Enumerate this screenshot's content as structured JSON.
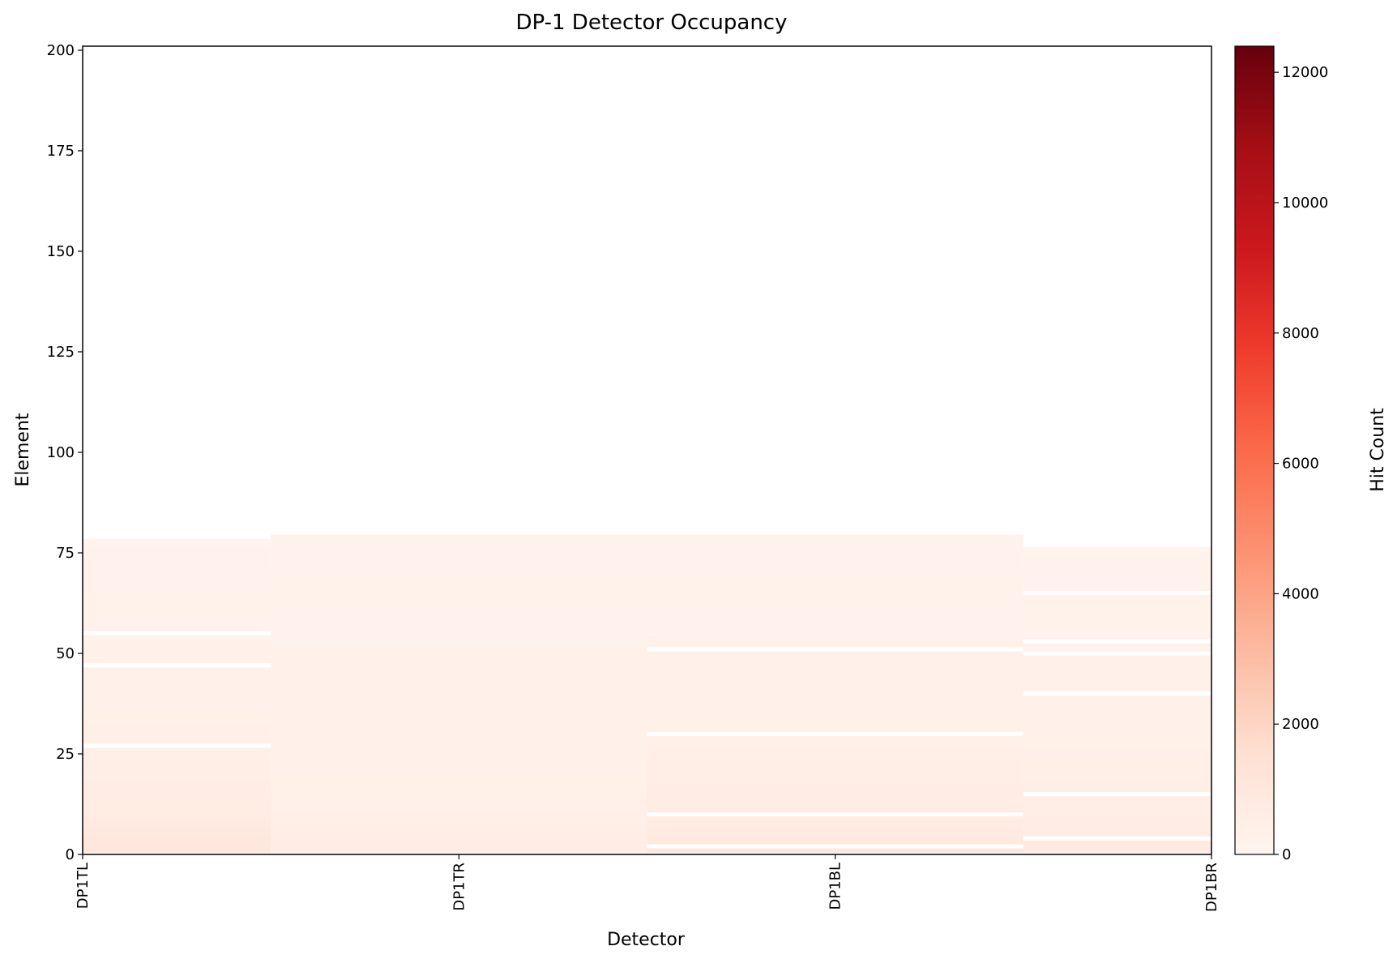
{
  "chart_data": {
    "type": "heatmap",
    "title": "DP-1 Detector Occupancy",
    "xlabel": "Detector",
    "ylabel": "Element",
    "colorbar_label": "Hit Count",
    "categories": [
      "DP1TL",
      "DP1TR",
      "DP1BL",
      "DP1BR"
    ],
    "ylim": [
      0,
      201
    ],
    "yticks": [
      0,
      25,
      50,
      75,
      100,
      125,
      150,
      175,
      200
    ],
    "zlim": [
      0,
      12400
    ],
    "colorbar_ticks": [
      0,
      2000,
      4000,
      6000,
      8000,
      10000,
      12000
    ],
    "colormap": "Reds",
    "grid": false,
    "columns": [
      {
        "detector": "DP1TL",
        "max_element": 78,
        "empty_elements": [
          27,
          47,
          55
        ],
        "profile": [
          [
            1,
            1100
          ],
          [
            10,
            700
          ],
          [
            25,
            450
          ],
          [
            50,
            300
          ],
          [
            78,
            180
          ]
        ]
      },
      {
        "detector": "DP1TR",
        "max_element": 79,
        "empty_elements": [],
        "profile": [
          [
            1,
            600
          ],
          [
            10,
            420
          ],
          [
            35,
            330
          ],
          [
            60,
            260
          ],
          [
            79,
            200
          ]
        ]
      },
      {
        "detector": "DP1BL",
        "max_element": 79,
        "empty_elements": [
          2,
          10,
          30,
          51
        ],
        "profile": [
          [
            1,
            1000
          ],
          [
            10,
            650
          ],
          [
            30,
            400
          ],
          [
            50,
            300
          ],
          [
            79,
            200
          ]
        ]
      },
      {
        "detector": "DP1BR",
        "max_element": 76,
        "empty_elements": [
          4,
          15,
          40,
          50,
          53,
          65
        ],
        "profile": [
          [
            1,
            850
          ],
          [
            10,
            550
          ],
          [
            30,
            380
          ],
          [
            50,
            280
          ],
          [
            76,
            180
          ]
        ]
      }
    ]
  }
}
